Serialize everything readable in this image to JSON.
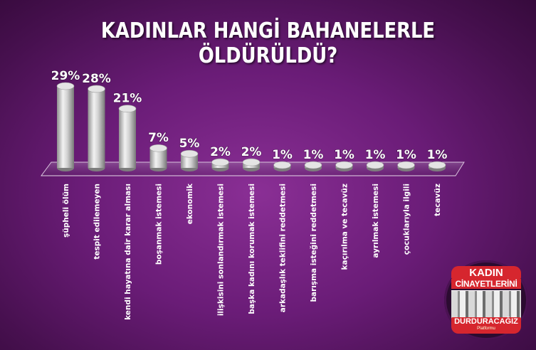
{
  "title": "KADINLAR HANGİ BAHANELERLE ÖLDÜRÜLDÜ?",
  "chart_data": {
    "type": "bar",
    "title": "KADINLAR HANGİ BAHANELERLE ÖLDÜRÜLDÜ?",
    "categories": [
      "şüpheli ölüm",
      "tespit edilemeyen",
      "kendi hayatına dair karar alması",
      "boşanmak istemesi",
      "ekonomik",
      "ilişkisini sonlandırmak istemesi",
      "başka kadını korumak istemesi",
      "arkadaşlık teklifini reddetmesi",
      "barışma isteğini reddetmesi",
      "kaçırılma ve tecavüz",
      "ayrılmak istemesi",
      "çocuklarıyla ilgili",
      "tecavüz"
    ],
    "values": [
      29,
      28,
      21,
      7,
      5,
      2,
      2,
      1,
      1,
      1,
      1,
      1,
      1
    ],
    "value_labels": [
      "29%",
      "28%",
      "21%",
      "7%",
      "5%",
      "2%",
      "2%",
      "1%",
      "1%",
      "1%",
      "1%",
      "1%",
      "1%"
    ],
    "unit": "%",
    "ylim": [
      0,
      29
    ],
    "grid": false,
    "legend": "none",
    "colors": {
      "bar": "#bdbdbd",
      "label": "#ffffff",
      "background": "#6a1c77"
    }
  },
  "logo": {
    "line1": "KADIN",
    "line2": "CİNAYETLERİNİ",
    "line3": "DURDURACAĞIZ",
    "line4": "Platformu",
    "icon": "faces-collage-icon"
  }
}
